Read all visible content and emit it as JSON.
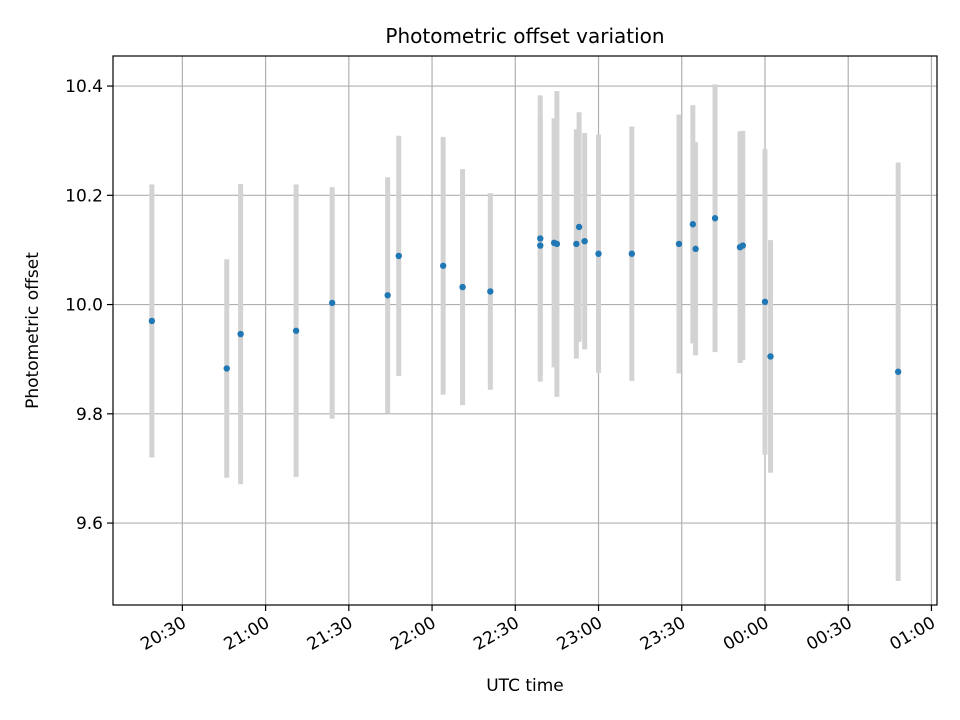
{
  "chart_data": {
    "type": "scatter",
    "title": "Photometric offset variation",
    "xlabel": "UTC time",
    "ylabel": "Photometric offset",
    "xlim": [
      "20:05",
      "01:02"
    ],
    "ylim": [
      9.45,
      10.455
    ],
    "xticks": [
      "20:30",
      "21:00",
      "21:30",
      "22:00",
      "22:30",
      "23:00",
      "23:30",
      "00:00",
      "00:30",
      "01:00"
    ],
    "yticks": [
      "9.6",
      "9.8",
      "10.0",
      "10.2",
      "10.4"
    ],
    "grid": true,
    "series": [
      {
        "marker_color": "#1f77b4",
        "errorbar_color": "#d3d3d3",
        "points": [
          {
            "x": "20:19",
            "y": 9.97,
            "err": 0.25
          },
          {
            "x": "20:46",
            "y": 9.883,
            "err": 0.2
          },
          {
            "x": "20:51",
            "y": 9.946,
            "err": 0.275
          },
          {
            "x": "21:11",
            "y": 9.952,
            "err": 0.268
          },
          {
            "x": "21:24",
            "y": 10.003,
            "err": 0.212
          },
          {
            "x": "21:44",
            "y": 10.017,
            "err": 0.216
          },
          {
            "x": "21:48",
            "y": 10.089,
            "err": 0.22
          },
          {
            "x": "22:04",
            "y": 10.071,
            "err": 0.236
          },
          {
            "x": "22:11",
            "y": 10.032,
            "err": 0.216
          },
          {
            "x": "22:21",
            "y": 10.024,
            "err": 0.18
          },
          {
            "x": "22:39",
            "y": 10.108,
            "err": 0.238
          },
          {
            "x": "22:39",
            "y": 10.121,
            "err": 0.262
          },
          {
            "x": "22:44",
            "y": 10.113,
            "err": 0.228
          },
          {
            "x": "22:45",
            "y": 10.111,
            "err": 0.28
          },
          {
            "x": "22:52",
            "y": 10.111,
            "err": 0.21
          },
          {
            "x": "22:53",
            "y": 10.142,
            "err": 0.21
          },
          {
            "x": "22:55",
            "y": 10.116,
            "err": 0.198
          },
          {
            "x": "23:00",
            "y": 10.093,
            "err": 0.218
          },
          {
            "x": "23:12",
            "y": 10.093,
            "err": 0.233
          },
          {
            "x": "23:29",
            "y": 10.111,
            "err": 0.237
          },
          {
            "x": "23:34",
            "y": 10.147,
            "err": 0.218
          },
          {
            "x": "23:35",
            "y": 10.102,
            "err": 0.195
          },
          {
            "x": "23:42",
            "y": 10.158,
            "err": 0.245
          },
          {
            "x": "23:51",
            "y": 10.105,
            "err": 0.212
          },
          {
            "x": "23:52",
            "y": 10.108,
            "err": 0.21
          },
          {
            "x": "00:00",
            "y": 10.005,
            "err": 0.28
          },
          {
            "x": "00:02",
            "y": 9.905,
            "err": 0.213
          },
          {
            "x": "00:48",
            "y": 9.877,
            "err": 0.383
          }
        ]
      }
    ]
  }
}
